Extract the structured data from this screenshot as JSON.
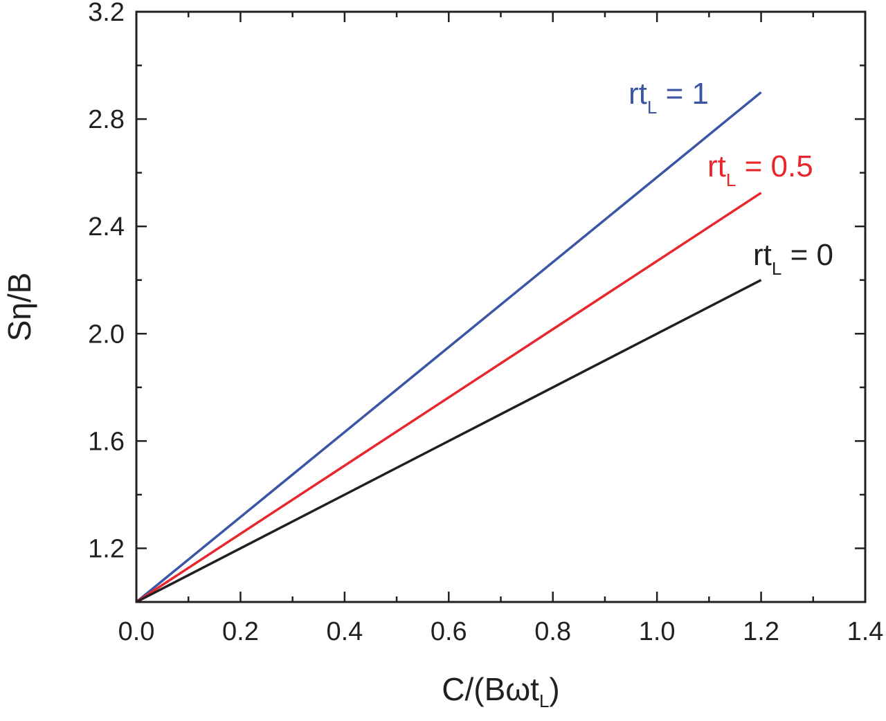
{
  "chart_data": {
    "type": "line",
    "xlabel": "C/(Bωt",
    "xlabel_sub": "L",
    "xlabel_end": ")",
    "ylabel": "Sη/B",
    "xlim": [
      0.0,
      1.4
    ],
    "ylim": [
      1.0,
      3.2
    ],
    "x_ticks": [
      0.0,
      0.2,
      0.4,
      0.6,
      0.8,
      1.0,
      1.2,
      1.4
    ],
    "x_tick_labels": [
      "0.0",
      "0.2",
      "0.4",
      "0.6",
      "0.8",
      "1.0",
      "1.2",
      "1.4"
    ],
    "y_ticks": [
      1.2,
      1.6,
      2.0,
      2.4,
      2.8,
      3.2
    ],
    "y_tick_labels": [
      "1.2",
      "1.6",
      "2.0",
      "2.4",
      "2.8",
      "3.2"
    ],
    "grid": false,
    "series": [
      {
        "label_main": "rt",
        "label_sub": "L",
        "label_end": " = 1",
        "color": "#3a55a4",
        "x": [
          0.0,
          1.2
        ],
        "y": [
          1.0,
          2.9
        ]
      },
      {
        "label_main": "rt",
        "label_sub": "L",
        "label_end": " = 0.5",
        "color": "#e8262c",
        "x": [
          0.0,
          1.2
        ],
        "y": [
          1.0,
          2.525
        ]
      },
      {
        "label_main": "rt",
        "label_sub": "L",
        "label_end": " = 0",
        "color": "#231f20",
        "x": [
          0.0,
          1.2
        ],
        "y": [
          1.0,
          2.2
        ]
      }
    ]
  }
}
